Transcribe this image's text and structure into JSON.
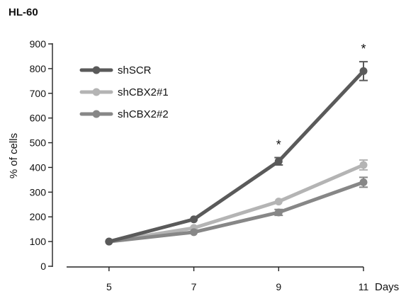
{
  "chart_data": {
    "type": "line",
    "title": "HL-60",
    "xlabel": "Days",
    "ylabel": "% of cells",
    "x": [
      5,
      7,
      9,
      11
    ],
    "x_ticks": [
      "5",
      "7",
      "9",
      "11"
    ],
    "y_ticks": [
      "0",
      "100",
      "200",
      "300",
      "400",
      "500",
      "600",
      "700",
      "800",
      "900"
    ],
    "xlim": [
      4,
      11
    ],
    "ylim": [
      0,
      900
    ],
    "grid": false,
    "legend_position": "top-left",
    "series": [
      {
        "name": "shSCR",
        "color": "#5a5a5a",
        "values": [
          100,
          190,
          425,
          790
        ],
        "errors": [
          0,
          0,
          15,
          38
        ]
      },
      {
        "name": "shCBX2#1",
        "color": "#b4b4b4",
        "values": [
          100,
          155,
          262,
          410
        ],
        "errors": [
          0,
          0,
          0,
          20
        ]
      },
      {
        "name": "shCBX2#2",
        "color": "#878787",
        "values": [
          100,
          138,
          218,
          340
        ],
        "errors": [
          0,
          0,
          12,
          20
        ]
      }
    ],
    "annotations": [
      {
        "text": "*",
        "x": 9
      },
      {
        "text": "*",
        "x": 11
      }
    ]
  }
}
